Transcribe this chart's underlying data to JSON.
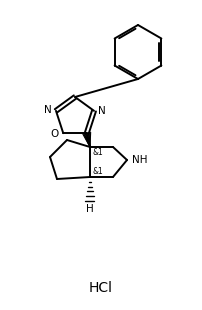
{
  "background": "#ffffff",
  "line_color": "#000000",
  "line_width": 1.4,
  "font_size_label": 7.5,
  "font_size_hcl": 10,
  "hcl_text": "HCl",
  "nh_label": "NH",
  "o_label": "O",
  "n_label": "N",
  "h_label": "H",
  "and1_label": "&1",
  "fig_width": 2.03,
  "fig_height": 3.1,
  "dpi": 100
}
